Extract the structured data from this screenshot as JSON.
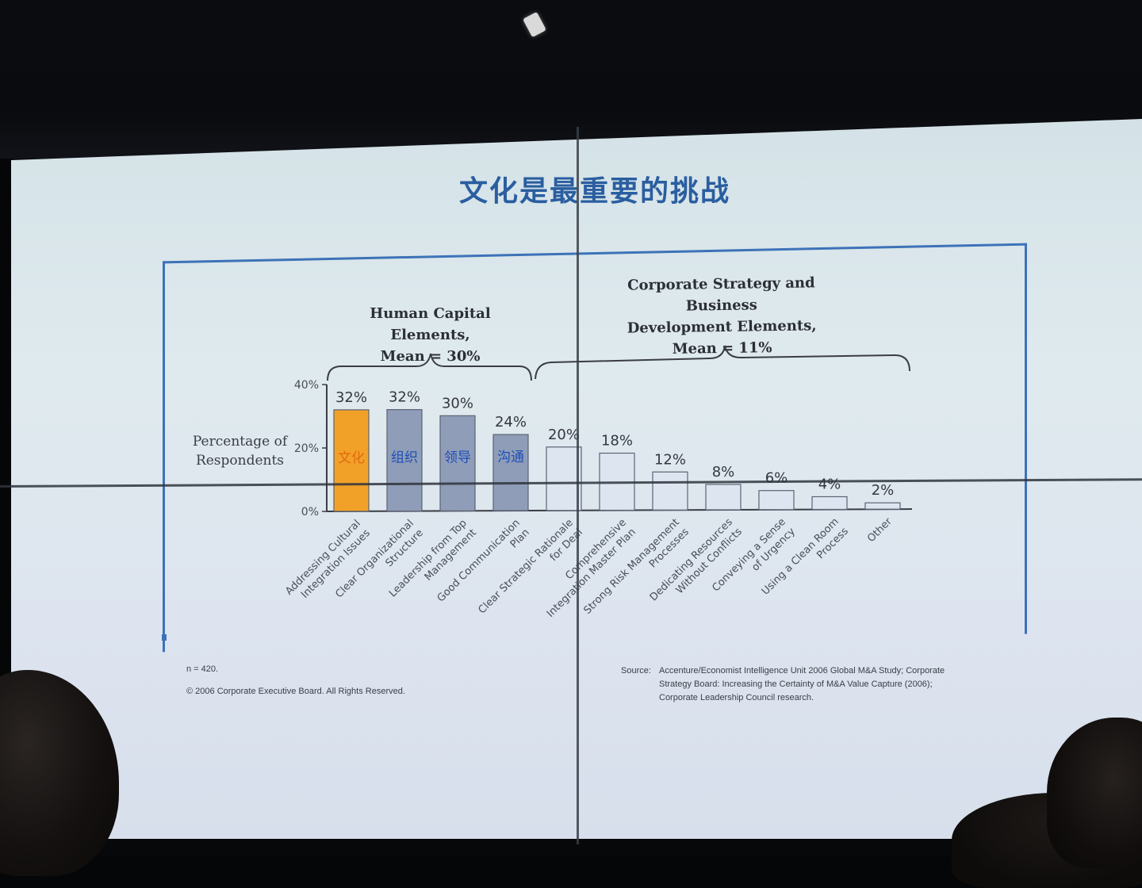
{
  "slide": {
    "title": "文化是最重要的挑战",
    "ylabel_line1": "Percentage of",
    "ylabel_line2": "Respondents",
    "group1_line1": "Human Capital Elements,",
    "group1_line2": "Mean = 30%",
    "group2_line1": "Corporate Strategy and Business",
    "group2_line2": "Development Elements,",
    "group2_line3": "Mean = 11%",
    "n_note": "n = 420.",
    "copyright": "© 2006 Corporate Executive Board. All Rights Reserved.",
    "source_label": "Source:",
    "source_line1": "Accenture/Economist Intelligence Unit 2006 Global M&A Study; Corporate",
    "source_line2": "Strategy Board: Increasing the Certainty of M&A Value Capture (2006);",
    "source_line3": "Corporate Leadership Council research."
  },
  "chart_data": {
    "type": "bar",
    "categories": [
      [
        "Addressing Cultural",
        "Integration Issues"
      ],
      [
        "Clear Organizational",
        "Structure"
      ],
      [
        "Leadership from Top",
        "Management"
      ],
      [
        "Good Communication",
        "Plan"
      ],
      [
        "Clear Strategic Rationale",
        "for Deal"
      ],
      [
        "Comprehensive",
        "Integration Master Plan"
      ],
      [
        "Strong Risk Management",
        "Processes"
      ],
      [
        "Dedicating Resources",
        "Without Conflicts"
      ],
      [
        "Conveying a Sense",
        "of Urgency"
      ],
      [
        "Using a Clean Room",
        "Process"
      ],
      [
        "Other"
      ]
    ],
    "values": [
      32,
      32,
      30,
      24,
      20,
      18,
      12,
      8,
      6,
      4,
      2
    ],
    "value_labels": [
      "32%",
      "32%",
      "30%",
      "24%",
      "20%",
      "18%",
      "12%",
      "8%",
      "6%",
      "4%",
      "2%"
    ],
    "bar_overlay_labels": [
      "文化",
      "组织",
      "领导",
      "沟通",
      "",
      "",
      "",
      "",
      "",
      "",
      ""
    ],
    "ylim": [
      0,
      40
    ],
    "yticks": [
      "0%",
      "20%",
      "40%"
    ],
    "ytick_values": [
      0,
      20,
      40
    ],
    "bar_colors": [
      "#f2a128",
      "#8f9db8",
      "#8f9db8",
      "#8f9db8",
      "#dde5f0",
      "#dde5f0",
      "#dde5f0",
      "#dde5f0",
      "#dde5f0",
      "#dde5f0",
      "#dde5f0"
    ],
    "overlay_colors": [
      "#e06a10",
      "#1f4fb8",
      "#1f4fb8",
      "#1f4fb8"
    ],
    "grid": false
  }
}
